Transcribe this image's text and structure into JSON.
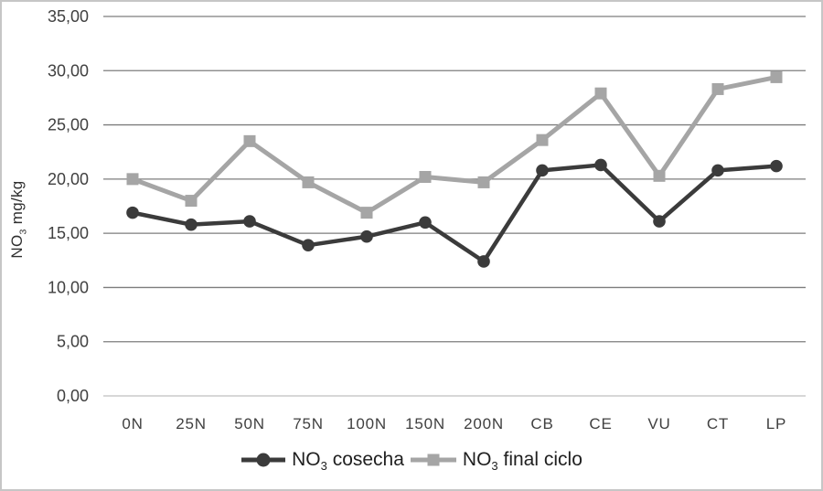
{
  "chart_data": {
    "type": "line",
    "title": "",
    "ylabel_prefix": "NO",
    "ylabel_sub": "3",
    "ylabel_suffix": " mg/kg",
    "xlabel": "",
    "categories": [
      "0N",
      "25N",
      "50N",
      "75N",
      "100N",
      "150N",
      "200N",
      "CB",
      "CE",
      "VU",
      "CT",
      "LP"
    ],
    "series": [
      {
        "name_prefix": "NO",
        "name_sub": "3",
        "name_suffix": " cosecha",
        "marker": "circle",
        "color": "#3b3b3b",
        "line_width": 4.5,
        "values": [
          16.9,
          15.8,
          16.1,
          13.9,
          14.7,
          16.0,
          12.4,
          20.8,
          21.3,
          16.1,
          20.8,
          21.2
        ]
      },
      {
        "name_prefix": "NO",
        "name_sub": "3",
        "name_suffix": " final ciclo",
        "marker": "square",
        "color": "#a5a5a5",
        "line_width": 5,
        "values": [
          20.0,
          18.0,
          23.5,
          19.7,
          16.9,
          20.2,
          19.7,
          23.6,
          27.9,
          20.3,
          28.3,
          29.4
        ]
      }
    ],
    "ylim": [
      0,
      35
    ],
    "ytick_step": 5,
    "ytick_labels": [
      "0,00",
      "5,00",
      "10,00",
      "15,00",
      "20,00",
      "25,00",
      "30,00",
      "35,00"
    ],
    "grid": true,
    "legend_position": "bottom",
    "colors": {
      "gridline": "#7d7d7d",
      "axis_line": "#bfbfbf",
      "tick_text": "#404040",
      "background": "#ffffff",
      "figure_border": "#c6c6c6"
    }
  }
}
